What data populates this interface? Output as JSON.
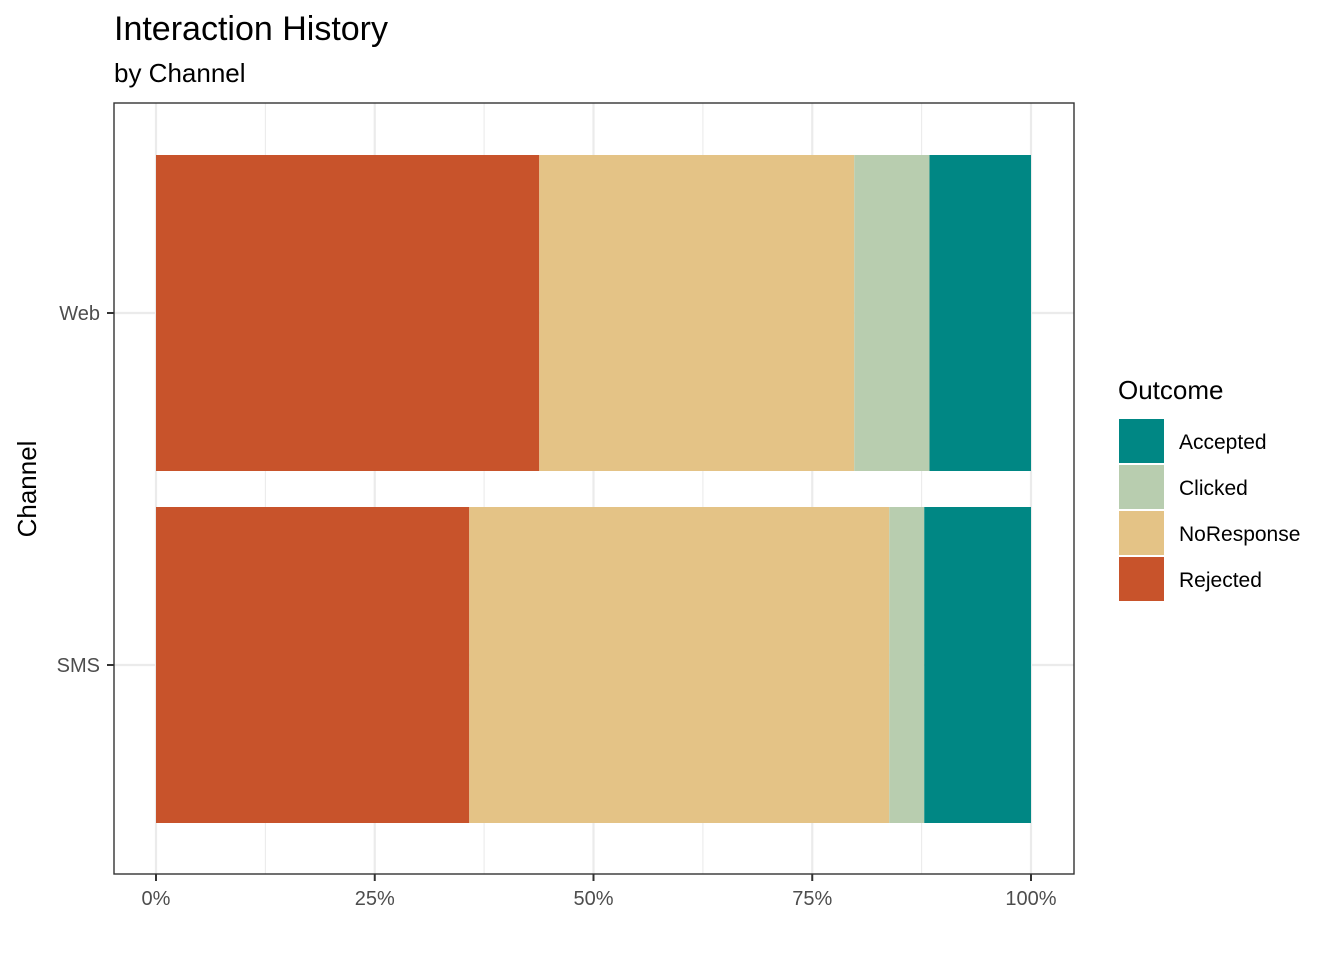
{
  "chart_data": {
    "type": "bar",
    "orientation": "horizontal",
    "stacked": "percent",
    "title": "Interaction History",
    "subtitle": "by Channel",
    "xlabel": "",
    "ylabel": "Channel",
    "categories": [
      "Web",
      "SMS"
    ],
    "xlim": [
      0,
      1
    ],
    "x_ticks": [
      0,
      0.25,
      0.5,
      0.75,
      1
    ],
    "x_tick_labels": [
      "0%",
      "25%",
      "50%",
      "75%",
      "100%"
    ],
    "grid": true,
    "legend": {
      "title": "Outcome",
      "position": "right",
      "entries": [
        "Accepted",
        "Clicked",
        "NoResponse",
        "Rejected"
      ]
    },
    "series": [
      {
        "name": "Rejected",
        "color": "#C8532B",
        "values": [
          0.438,
          0.358
        ]
      },
      {
        "name": "NoResponse",
        "color": "#E4C386",
        "values": [
          0.36,
          0.48
        ]
      },
      {
        "name": "Clicked",
        "color": "#B8CDAF",
        "values": [
          0.086,
          0.04
        ]
      },
      {
        "name": "Accepted",
        "color": "#008784",
        "values": [
          0.116,
          0.122
        ]
      }
    ]
  }
}
